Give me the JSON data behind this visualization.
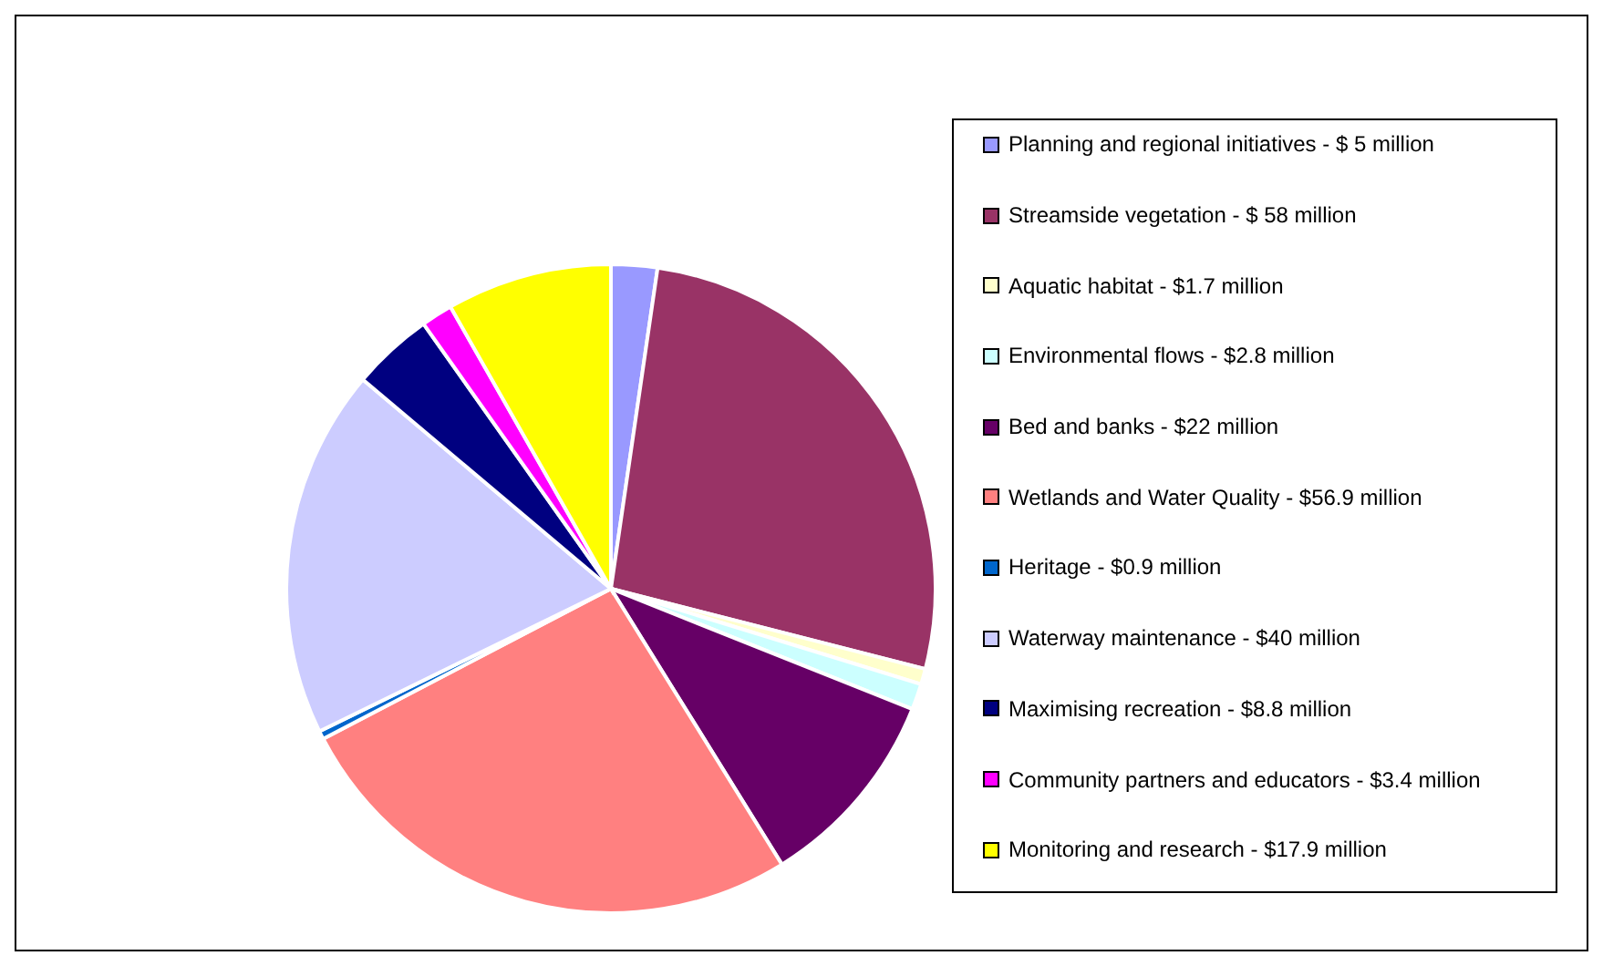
{
  "chart_data": {
    "type": "pie",
    "legend": "right",
    "categories": [
      "Planning and regional initiatives",
      "Streamside vegetation",
      "Aquatic habitat",
      "Environmental flows",
      "Bed and banks",
      "Wetlands and Water Quality",
      "Heritage",
      "Waterway maintenance",
      "Maximising recreation",
      "Community partners and educators",
      "Monitoring and research"
    ],
    "values": [
      5,
      58,
      1.7,
      2.8,
      22,
      56.9,
      0.9,
      40,
      8.8,
      3.4,
      17.9
    ],
    "value_labels": [
      "$ 5 million",
      "$ 58 million",
      "$1.7 million",
      "$2.8 million",
      "$22 million",
      "$56.9 million",
      "$0.9 million",
      "$40 million",
      "$8.8 million",
      "$3.4 million",
      "$17.9 million"
    ],
    "colors": [
      "#9999ff",
      "#993366",
      "#ffffcc",
      "#ccffff",
      "#660066",
      "#ff8080",
      "#0066cc",
      "#ccccff",
      "#000080",
      "#ff00ff",
      "#ffff00"
    ]
  }
}
